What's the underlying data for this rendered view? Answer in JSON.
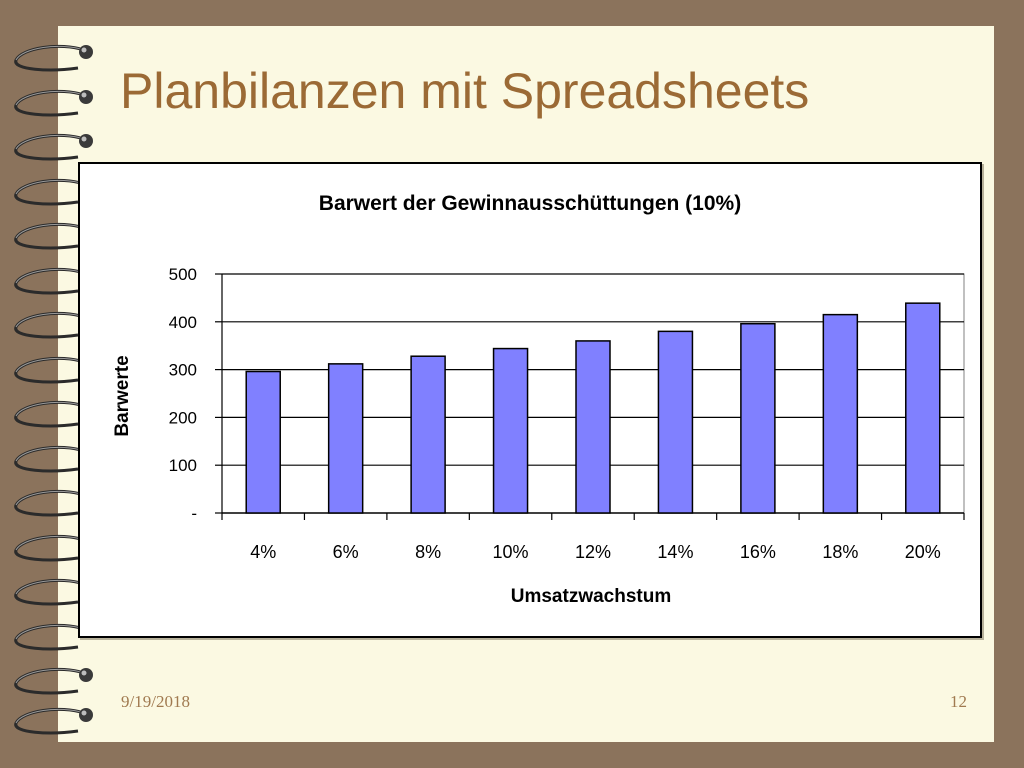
{
  "slide": {
    "title": "Planbilanzen mit Spreadsheets",
    "date": "9/19/2018",
    "page_number": "12"
  },
  "colors": {
    "background": "#8b735c",
    "page": "#fbf9e2",
    "title": "#9b6a35",
    "bar_fill": "#8080ff",
    "footer": "#a07a50"
  },
  "chart_data": {
    "type": "bar",
    "title": "Barwert der Gewinnausschüttungen (10%)",
    "xlabel": "Umsatzwachstum",
    "ylabel": "Barwerte",
    "categories": [
      "4%",
      "6%",
      "8%",
      "10%",
      "12%",
      "14%",
      "16%",
      "18%",
      "20%"
    ],
    "values": [
      296,
      312,
      328,
      344,
      360,
      380,
      396,
      415,
      439
    ],
    "ylim": [
      0,
      500
    ],
    "yticks": [
      0,
      100,
      200,
      300,
      400,
      500
    ],
    "ytick_labels": [
      "-",
      "100",
      "200",
      "300",
      "400",
      "500"
    ],
    "grid": true,
    "legend": "none"
  }
}
